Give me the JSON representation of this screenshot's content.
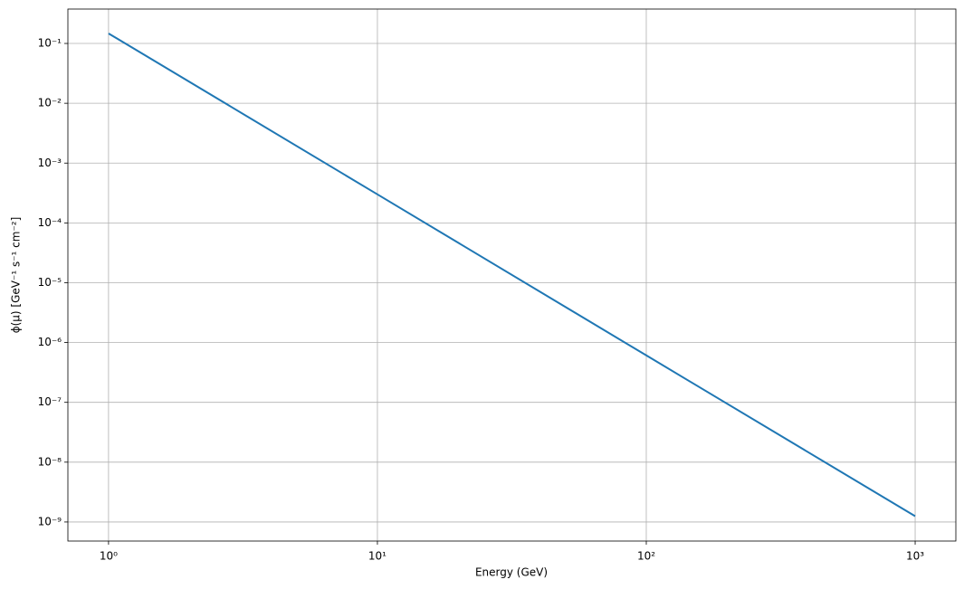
{
  "chart_data": {
    "type": "line",
    "x": [
      1,
      10,
      100,
      1000
    ],
    "series": [
      {
        "color": "#1f77b4",
        "values": [
          0.147,
          0.0003,
          6.1e-07,
          1.25e-09
        ]
      }
    ],
    "xlabel": "Energy (GeV)",
    "ylabel": "ϕ(μ) [GeV⁻¹ s⁻¹ cm⁻²]",
    "xscale": "log",
    "yscale": "log",
    "xlim": [
      0.706,
      1417
    ],
    "ylim": [
      4.8e-10,
      0.376
    ],
    "xticks": [
      {
        "value": 1,
        "label": "10⁰"
      },
      {
        "value": 10,
        "label": "10¹"
      },
      {
        "value": 100,
        "label": "10²"
      },
      {
        "value": 1000,
        "label": "10³"
      }
    ],
    "yticks": [
      {
        "value": 1e-09,
        "label": "10⁻⁹"
      },
      {
        "value": 1e-08,
        "label": "10⁻⁸"
      },
      {
        "value": 1e-07,
        "label": "10⁻⁷"
      },
      {
        "value": 1e-06,
        "label": "10⁻⁶"
      },
      {
        "value": 1e-05,
        "label": "10⁻⁵"
      },
      {
        "value": 0.0001,
        "label": "10⁻⁴"
      },
      {
        "value": 0.001,
        "label": "10⁻³"
      },
      {
        "value": 0.01,
        "label": "10⁻²"
      },
      {
        "value": 0.1,
        "label": "10⁻¹"
      }
    ],
    "grid": true
  }
}
